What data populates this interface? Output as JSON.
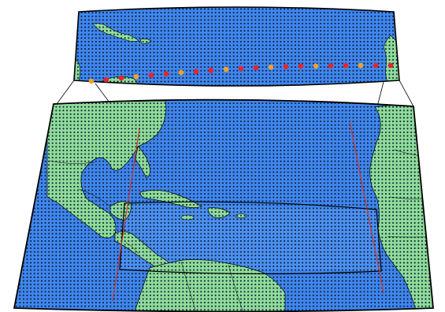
{
  "colors": {
    "ocean_outer": "#3f86ef",
    "ocean_inner": "#4b90f2",
    "land": "#8fdc9a",
    "grid_dot": "#0d1e33",
    "border_line": "#000000",
    "red_marker": "#e8232a",
    "orange_marker": "#f2a02c",
    "subdomain_line": "#cf3324"
  },
  "markers": {
    "description_none": "",
    "sequence": [
      "orange",
      "red",
      "red",
      "orange",
      "red",
      "red",
      "orange",
      "red",
      "red",
      "orange",
      "red",
      "red",
      "orange",
      "red",
      "red",
      "orange",
      "red",
      "red",
      "orange",
      "red",
      "red"
    ]
  }
}
